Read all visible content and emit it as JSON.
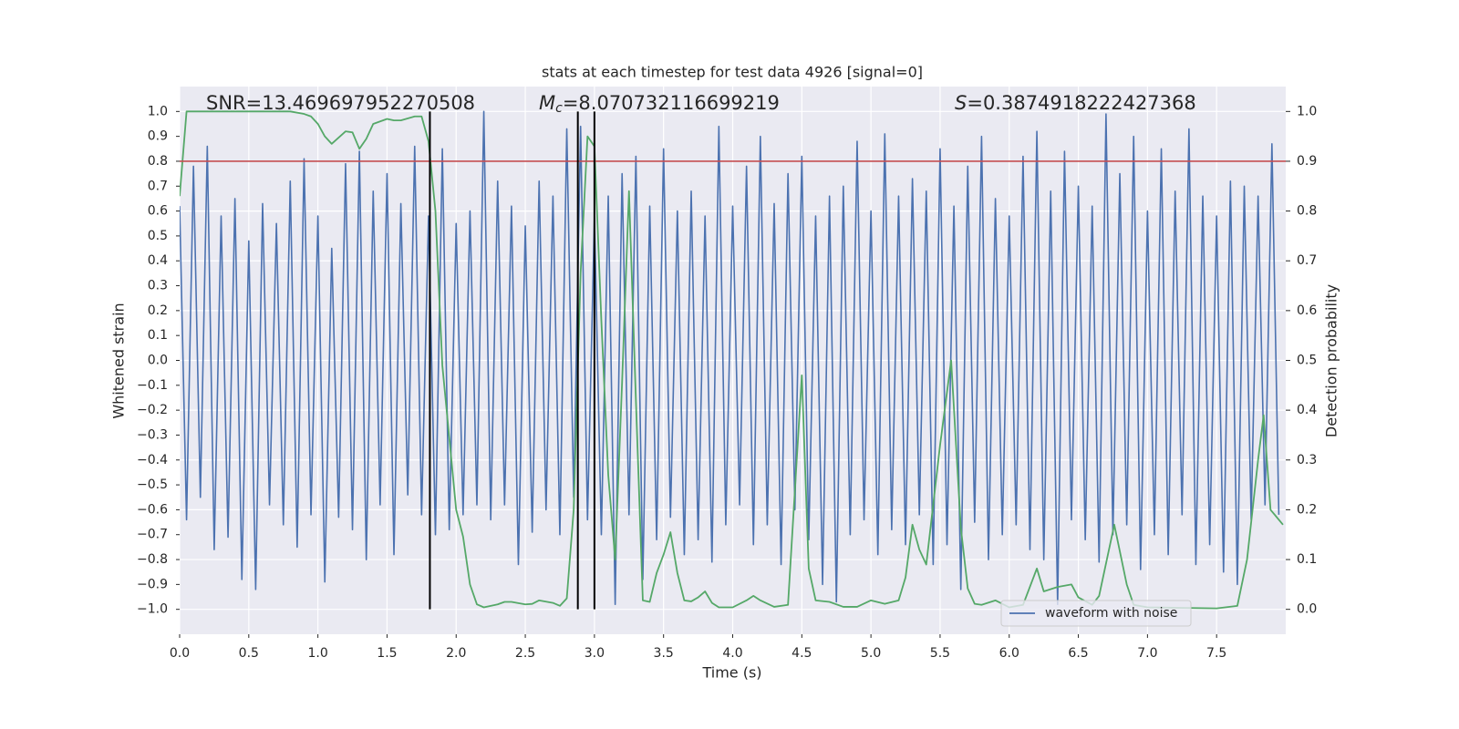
{
  "chart_data": {
    "type": "line",
    "title": "stats at each timestep for test data 4926 [signal=0]",
    "xlabel": "Time (s)",
    "ylabel": "Whitened strain",
    "y2label": "Detection probability",
    "xlim": [
      0,
      8
    ],
    "ylim": [
      -1.1,
      1.1
    ],
    "y2lim": [
      -0.05,
      1.05
    ],
    "xticks": [
      {
        "value": 0,
        "label": "0.0"
      },
      {
        "value": 0.5,
        "label": "0.5"
      },
      {
        "value": 1,
        "label": "1.0"
      },
      {
        "value": 1.5,
        "label": "1.5"
      },
      {
        "value": 2,
        "label": "2.0"
      },
      {
        "value": 2.5,
        "label": "2.5"
      },
      {
        "value": 3,
        "label": "3.0"
      },
      {
        "value": 3.5,
        "label": "3.5"
      },
      {
        "value": 4,
        "label": "4.0"
      },
      {
        "value": 4.5,
        "label": "4.5"
      },
      {
        "value": 5,
        "label": "5.0"
      },
      {
        "value": 5.5,
        "label": "5.5"
      },
      {
        "value": 6,
        "label": "6.0"
      },
      {
        "value": 6.5,
        "label": "6.5"
      },
      {
        "value": 7,
        "label": "7.0"
      },
      {
        "value": 7.5,
        "label": "7.5"
      }
    ],
    "yticks": [
      {
        "value": -1,
        "label": "−1.0"
      },
      {
        "value": -0.9,
        "label": "−0.9"
      },
      {
        "value": -0.8,
        "label": "−0.8"
      },
      {
        "value": -0.7,
        "label": "−0.7"
      },
      {
        "value": -0.6,
        "label": "−0.6"
      },
      {
        "value": -0.5,
        "label": "−0.5"
      },
      {
        "value": -0.4,
        "label": "−0.4"
      },
      {
        "value": -0.3,
        "label": "−0.3"
      },
      {
        "value": -0.2,
        "label": "−0.2"
      },
      {
        "value": -0.1,
        "label": "−0.1"
      },
      {
        "value": 0,
        "label": "0.0"
      },
      {
        "value": 0.1,
        "label": "0.1"
      },
      {
        "value": 0.2,
        "label": "0.2"
      },
      {
        "value": 0.3,
        "label": "0.3"
      },
      {
        "value": 0.4,
        "label": "0.4"
      },
      {
        "value": 0.5,
        "label": "0.5"
      },
      {
        "value": 0.6,
        "label": "0.6"
      },
      {
        "value": 0.7,
        "label": "0.7"
      },
      {
        "value": 0.8,
        "label": "0.8"
      },
      {
        "value": 0.9,
        "label": "0.9"
      },
      {
        "value": 1,
        "label": "1.0"
      }
    ],
    "y2ticks": [
      {
        "value": 0,
        "label": "0.0"
      },
      {
        "value": 0.1,
        "label": "0.1"
      },
      {
        "value": 0.2,
        "label": "0.2"
      },
      {
        "value": 0.3,
        "label": "0.3"
      },
      {
        "value": 0.4,
        "label": "0.4"
      },
      {
        "value": 0.5,
        "label": "0.5"
      },
      {
        "value": 0.6,
        "label": "0.6"
      },
      {
        "value": 0.7,
        "label": "0.7"
      },
      {
        "value": 0.8,
        "label": "0.8"
      },
      {
        "value": 0.9,
        "label": "0.9"
      },
      {
        "value": 1,
        "label": "1.0"
      }
    ],
    "grid": true,
    "grid_axis": "y2",
    "legend": "lower right",
    "series": [
      {
        "name": "waveform with noise",
        "color": "#4c72b0",
        "x": [
          0,
          0.05,
          0.1,
          0.15,
          0.2,
          0.25,
          0.3,
          0.35,
          0.4,
          0.45,
          0.5,
          0.55,
          0.6,
          0.65,
          0.7,
          0.75,
          0.8,
          0.85,
          0.9,
          0.95,
          1,
          1.05,
          1.1,
          1.15,
          1.2,
          1.25,
          1.3,
          1.35,
          1.4,
          1.45,
          1.5,
          1.55,
          1.6,
          1.65,
          1.7,
          1.75,
          1.8,
          1.85,
          1.9,
          1.95,
          2,
          2.05,
          2.1,
          2.15,
          2.2,
          2.25,
          2.3,
          2.35,
          2.4,
          2.45,
          2.5,
          2.55,
          2.6,
          2.65,
          2.7,
          2.75,
          2.8,
          2.85,
          2.9,
          2.95,
          3,
          3.05,
          3.1,
          3.15,
          3.2,
          3.25,
          3.3,
          3.35,
          3.4,
          3.45,
          3.5,
          3.55,
          3.6,
          3.65,
          3.7,
          3.75,
          3.8,
          3.85,
          3.9,
          3.95,
          4,
          4.05,
          4.1,
          4.15,
          4.2,
          4.25,
          4.3,
          4.35,
          4.4,
          4.45,
          4.5,
          4.55,
          4.6,
          4.65,
          4.7,
          4.75,
          4.8,
          4.85,
          4.9,
          4.95,
          5,
          5.05,
          5.1,
          5.15,
          5.2,
          5.25,
          5.3,
          5.35,
          5.4,
          5.45,
          5.5,
          5.55,
          5.6,
          5.65,
          5.7,
          5.75,
          5.8,
          5.85,
          5.9,
          5.95,
          6,
          6.05,
          6.1,
          6.15,
          6.2,
          6.25,
          6.3,
          6.35,
          6.4,
          6.45,
          6.5,
          6.55,
          6.6,
          6.65,
          6.7,
          6.75,
          6.8,
          6.85,
          6.9,
          6.95,
          7,
          7.05,
          7.1,
          7.15,
          7.2,
          7.25,
          7.3,
          7.35,
          7.4,
          7.45,
          7.5,
          7.55,
          7.6,
          7.65,
          7.7,
          7.75,
          7.8,
          7.85,
          7.9,
          7.95
        ],
        "values": [
          0.62,
          -0.64,
          0.78,
          -0.55,
          0.86,
          -0.76,
          0.58,
          -0.71,
          0.65,
          -0.88,
          0.48,
          -0.92,
          0.63,
          -0.58,
          0.55,
          -0.66,
          0.72,
          -0.75,
          0.81,
          -0.62,
          0.58,
          -0.89,
          0.45,
          -0.63,
          0.79,
          -0.68,
          0.84,
          -0.8,
          0.68,
          -0.58,
          0.75,
          -0.78,
          0.63,
          -0.54,
          0.86,
          -0.62,
          0.58,
          -0.7,
          0.85,
          -0.68,
          0.55,
          -0.62,
          0.6,
          -0.58,
          1.0,
          -0.64,
          0.72,
          -0.58,
          0.62,
          -0.82,
          0.54,
          -0.69,
          0.72,
          -0.6,
          0.66,
          -0.7,
          0.93,
          -0.55,
          0.94,
          -0.64,
          0.58,
          -0.7,
          0.66,
          -0.98,
          0.75,
          -0.62,
          0.82,
          -0.88,
          0.62,
          -0.72,
          0.85,
          -0.63,
          0.6,
          -0.78,
          0.68,
          -0.72,
          0.58,
          -0.81,
          0.94,
          -0.66,
          0.62,
          -0.58,
          0.78,
          -0.74,
          0.9,
          -0.66,
          0.63,
          -0.82,
          0.75,
          -0.6,
          0.82,
          -0.72,
          0.58,
          -0.9,
          0.66,
          -0.97,
          0.7,
          -0.7,
          0.88,
          -0.64,
          0.6,
          -0.78,
          0.91,
          -0.68,
          0.66,
          -0.74,
          0.73,
          -0.62,
          0.68,
          -0.82,
          0.85,
          -0.74,
          0.62,
          -0.92,
          0.78,
          -0.65,
          0.9,
          -0.8,
          0.65,
          -0.7,
          0.58,
          -0.66,
          0.82,
          -0.76,
          0.92,
          -0.8,
          0.68,
          -0.98,
          0.84,
          -0.64,
          0.7,
          -0.72,
          0.62,
          -0.81,
          0.99,
          -0.7,
          0.75,
          -0.66,
          0.9,
          -0.84,
          0.6,
          -0.7,
          0.85,
          -0.78,
          0.68,
          -0.62,
          0.93,
          -0.82,
          0.66,
          -0.74,
          0.58,
          -0.85,
          0.72,
          -0.9,
          0.7,
          -0.64,
          0.66,
          -0.58,
          0.87,
          -0.62
        ]
      },
      {
        "color": "#55a868",
        "axis": "y2",
        "x": [
          0,
          0.05,
          0.1,
          0.2,
          0.3,
          0.4,
          0.5,
          0.6,
          0.7,
          0.8,
          0.9,
          0.95,
          1,
          1.05,
          1.1,
          1.2,
          1.25,
          1.3,
          1.35,
          1.4,
          1.5,
          1.55,
          1.6,
          1.7,
          1.75,
          1.8,
          1.85,
          1.9,
          2,
          2.05,
          2.1,
          2.15,
          2.2,
          2.3,
          2.35,
          2.4,
          2.5,
          2.55,
          2.6,
          2.7,
          2.75,
          2.8,
          2.85,
          2.9,
          2.95,
          3,
          3.05,
          3.1,
          3.15,
          3.2,
          3.25,
          3.3,
          3.35,
          3.4,
          3.45,
          3.5,
          3.55,
          3.6,
          3.65,
          3.7,
          3.75,
          3.8,
          3.85,
          3.9,
          4,
          4.1,
          4.15,
          4.2,
          4.3,
          4.4,
          4.5,
          4.55,
          4.6,
          4.7,
          4.8,
          4.9,
          5,
          5.1,
          5.2,
          5.25,
          5.3,
          5.35,
          5.4,
          5.5,
          5.58,
          5.65,
          5.7,
          5.75,
          5.8,
          5.9,
          6,
          6.1,
          6.2,
          6.25,
          6.35,
          6.45,
          6.5,
          6.6,
          6.65,
          6.76,
          6.85,
          6.9,
          7,
          7.5,
          7.65,
          7.72,
          7.8,
          7.84,
          7.89,
          7.98
        ],
        "values": [
          0.83,
          1.0,
          1.0,
          1.0,
          1.0,
          1.0,
          1.0,
          1.0,
          1.0,
          1.0,
          0.995,
          0.99,
          0.975,
          0.95,
          0.935,
          0.96,
          0.958,
          0.925,
          0.945,
          0.975,
          0.985,
          0.982,
          0.982,
          0.99,
          0.99,
          0.94,
          0.8,
          0.49,
          0.2,
          0.146,
          0.05,
          0.01,
          0.004,
          0.01,
          0.015,
          0.015,
          0.01,
          0.011,
          0.018,
          0.013,
          0.007,
          0.022,
          0.2,
          0.675,
          0.95,
          0.93,
          0.58,
          0.27,
          0.1,
          0.456,
          0.84,
          0.42,
          0.018,
          0.015,
          0.073,
          0.11,
          0.155,
          0.073,
          0.018,
          0.016,
          0.024,
          0.036,
          0.013,
          0.004,
          0.004,
          0.018,
          0.027,
          0.018,
          0.005,
          0.009,
          0.47,
          0.082,
          0.018,
          0.015,
          0.005,
          0.005,
          0.018,
          0.011,
          0.018,
          0.064,
          0.17,
          0.12,
          0.09,
          0.33,
          0.5,
          0.164,
          0.042,
          0.011,
          0.009,
          0.018,
          0.004,
          0.009,
          0.082,
          0.036,
          0.045,
          0.05,
          0.024,
          0.009,
          0.027,
          0.17,
          0.05,
          0.009,
          0.004,
          0.002,
          0.007,
          0.1,
          0.3,
          0.39,
          0.2,
          0.17
        ]
      }
    ],
    "hline": {
      "y": 0.8,
      "color": "#c44e52"
    },
    "vlines": {
      "x": [
        1.81,
        2.88,
        3.0
      ],
      "ymin": -1,
      "ymax": 1,
      "color": "#000000"
    },
    "annotations": [
      {
        "text": "SNR=13.469697952270508"
      },
      {
        "symbol": "M",
        "subscript": "c",
        "text": "=8.070732116699219"
      },
      {
        "symbol": "S",
        "text": "=0.3874918222427368"
      }
    ]
  }
}
